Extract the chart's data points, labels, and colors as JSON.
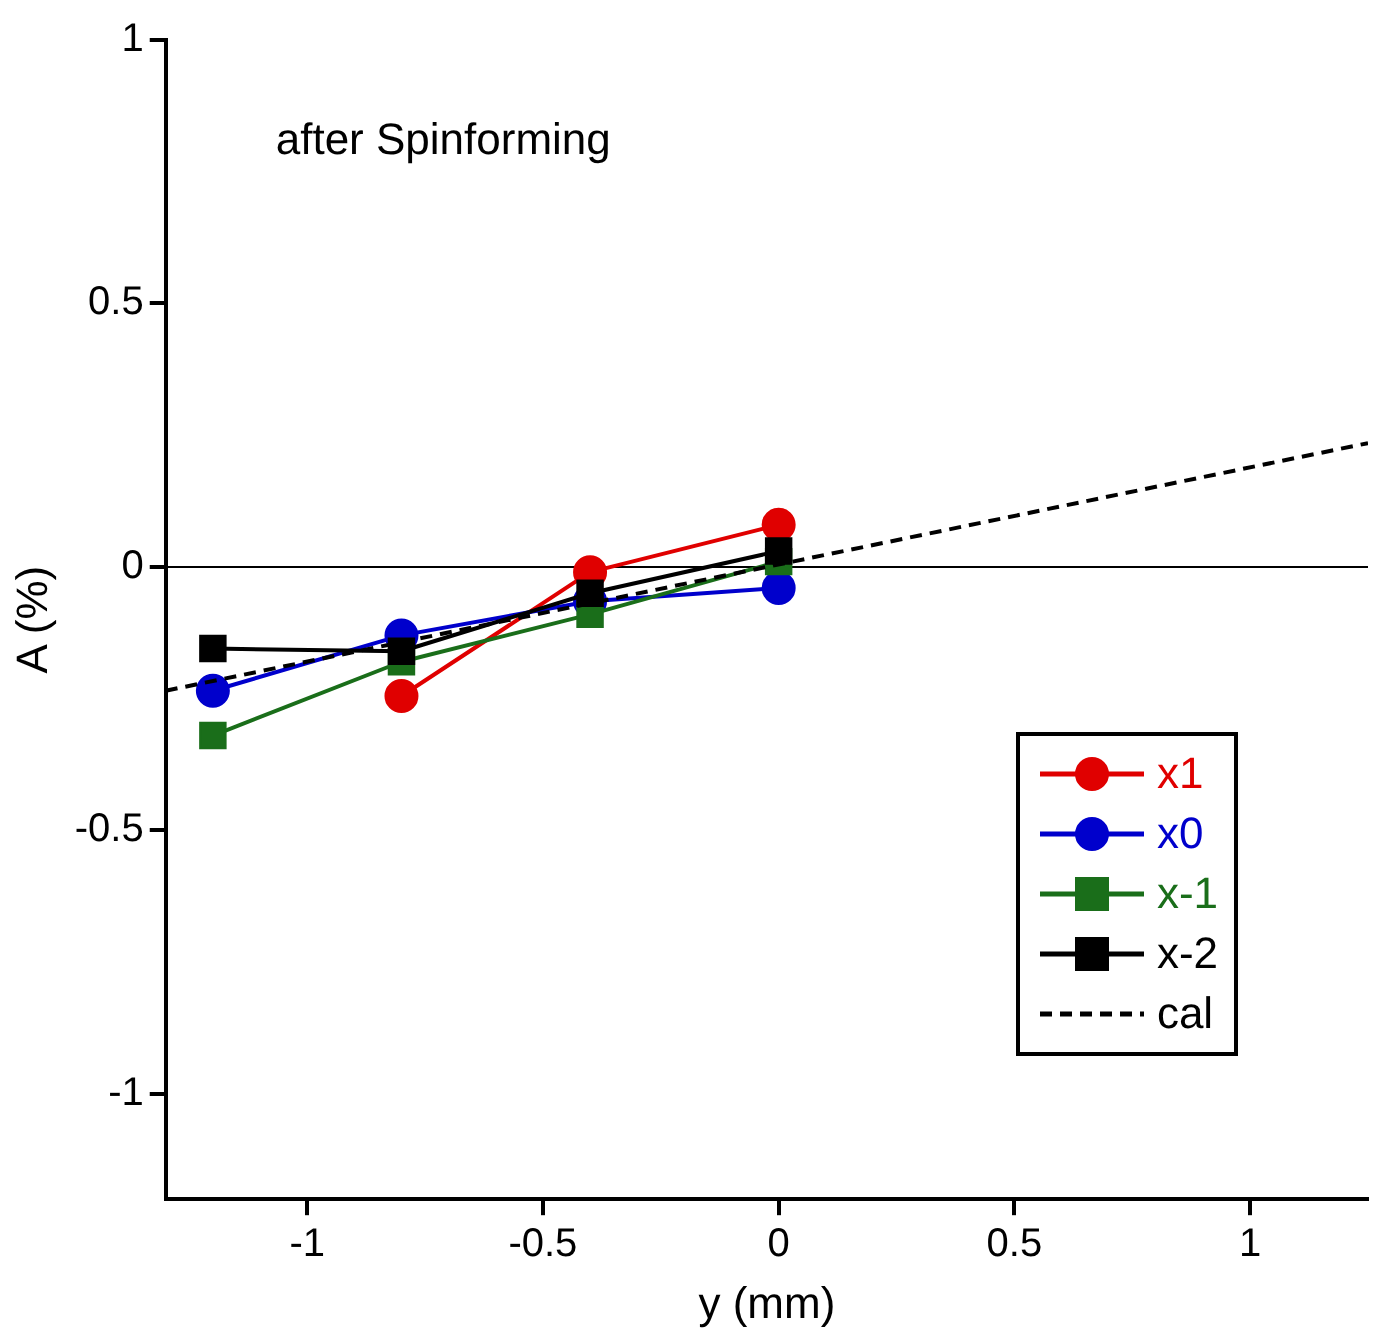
{
  "chart_data": {
    "type": "line",
    "annotations": [
      "after Spinforming"
    ],
    "xlabel": "y (mm)",
    "ylabel": "A (%)",
    "x": [
      -1.2,
      -0.8,
      -0.4,
      0
    ],
    "series": [
      {
        "name": "x1",
        "color": "#e00000",
        "marker": "circle",
        "values": [
          null,
          -0.245,
          -0.01,
          0.08
        ]
      },
      {
        "name": "x0",
        "color": "#0000cc",
        "marker": "circle",
        "values": [
          -0.235,
          -0.13,
          -0.065,
          -0.04
        ]
      },
      {
        "name": "x-1",
        "color": "#1a6e1a",
        "marker": "square",
        "values": [
          -0.32,
          -0.18,
          -0.09,
          0.01
        ]
      },
      {
        "name": "x-2",
        "color": "#000000",
        "marker": "square",
        "values": [
          -0.155,
          -0.16,
          -0.05,
          0.03
        ]
      },
      {
        "name": "cal",
        "color": "#000000",
        "marker": "none",
        "line_style": "dashed",
        "x": [
          -1.3,
          1.25
        ],
        "values": [
          -0.235,
          0.235
        ]
      }
    ],
    "xlim": [
      -1.3,
      1.25
    ],
    "xticks": [
      -1,
      -0.5,
      0,
      0.5,
      1
    ],
    "ylim": [
      -1.2,
      1
    ],
    "yticks": [
      -1,
      -0.5,
      0,
      0.5,
      1
    ],
    "ref_lines": [
      {
        "axis": "y",
        "value": 0,
        "color": "#000000"
      }
    ],
    "grid": false,
    "legend": "bottom right"
  }
}
